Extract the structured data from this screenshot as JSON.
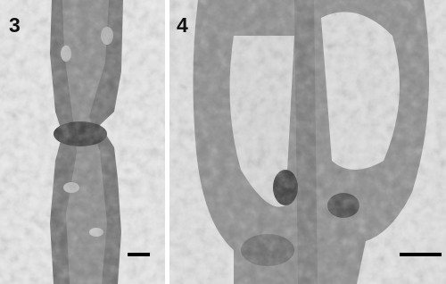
{
  "panels": [
    {
      "label": "3"
    },
    {
      "label": "4"
    }
  ]
}
